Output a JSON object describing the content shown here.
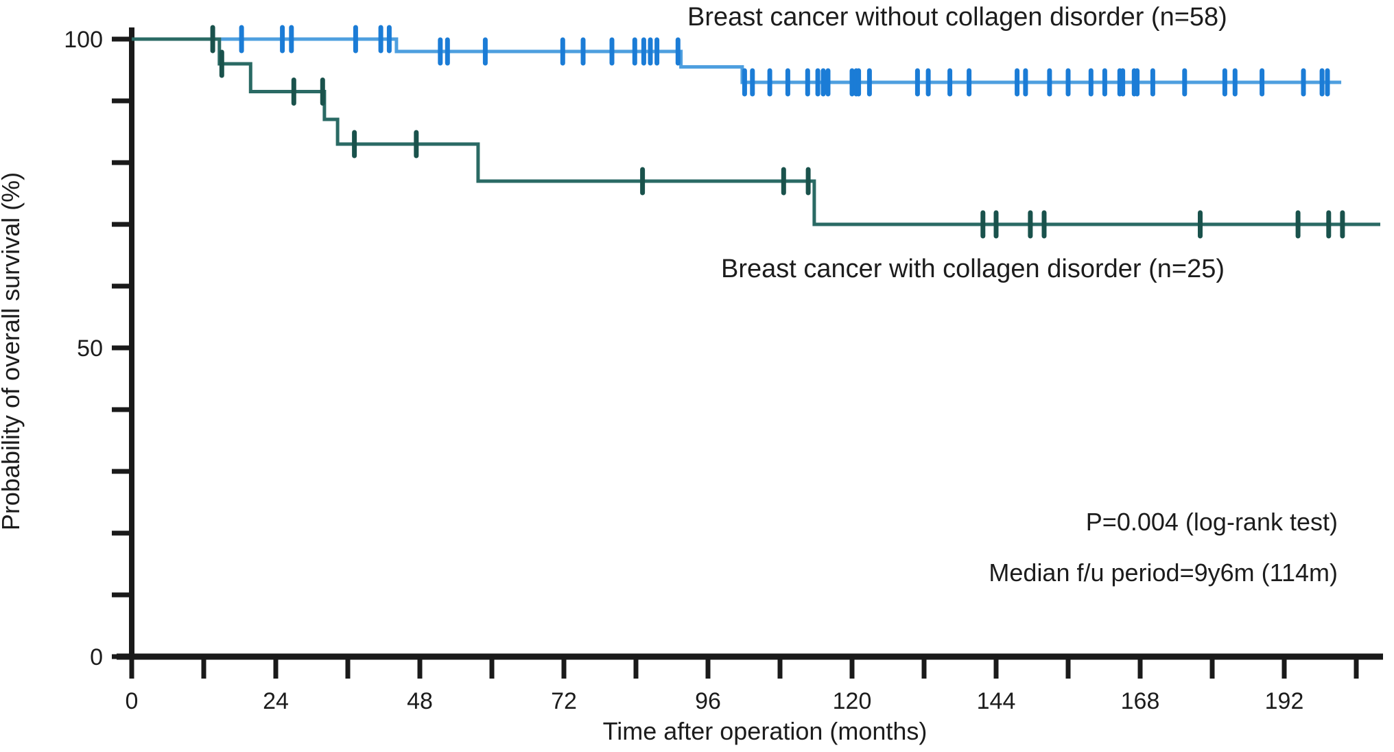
{
  "meta": {
    "background": "#ffffff",
    "axis_color": "#1a1a1a",
    "text_color": "#1c1c1c"
  },
  "chart_data": {
    "type": "line",
    "subtype": "kaplan-meier-step",
    "title": "",
    "xlabel": "Time after operation (months)",
    "ylabel": "Probability of overall survival (%)",
    "xlim": [
      0,
      208
    ],
    "ylim": [
      0,
      100
    ],
    "xticks_labeled": [
      0,
      24,
      48,
      72,
      96,
      120,
      144,
      168,
      192
    ],
    "xtick_minor_step": 12,
    "yticks_labeled": [
      100,
      50,
      0
    ],
    "ytick_minor_step": 10,
    "grid": false,
    "legend_position": "inline-labels",
    "annotations": [
      {
        "text": "P=0.004 (log-rank test)"
      },
      {
        "text": "Median f/u period=9y6m (114m)"
      }
    ],
    "series": [
      {
        "name": "Breast cancer without collagen disorder (n=58)",
        "n": 58,
        "color": "#4E9FDF",
        "censor_color": "#1B7CD6",
        "steps": [
          [
            0,
            100
          ],
          [
            44.1,
            100
          ],
          [
            44.1,
            98
          ],
          [
            91.5,
            98
          ],
          [
            91.5,
            95.5
          ],
          [
            101.7,
            95.5
          ],
          [
            101.7,
            93
          ],
          [
            201.5,
            93
          ]
        ],
        "censors": [
          [
            18.3,
            100
          ],
          [
            25.1,
            100
          ],
          [
            26.6,
            100
          ],
          [
            37.3,
            100
          ],
          [
            41.5,
            100
          ],
          [
            42.9,
            100
          ],
          [
            51.4,
            98
          ],
          [
            52.6,
            98
          ],
          [
            58.9,
            98
          ],
          [
            71.8,
            98
          ],
          [
            75.2,
            98
          ],
          [
            80,
            98
          ],
          [
            83.8,
            98
          ],
          [
            85.3,
            98
          ],
          [
            86.4,
            98
          ],
          [
            87.5,
            98
          ],
          [
            91,
            98
          ],
          [
            102.1,
            93
          ],
          [
            103.4,
            93
          ],
          [
            106.3,
            93
          ],
          [
            109.3,
            93
          ],
          [
            112.6,
            93
          ],
          [
            114.3,
            93
          ],
          [
            115.2,
            93
          ],
          [
            116,
            93
          ],
          [
            120,
            93
          ],
          [
            120.7,
            93
          ],
          [
            121.1,
            93
          ],
          [
            122.9,
            93
          ],
          [
            130.9,
            93
          ],
          [
            132.7,
            93
          ],
          [
            136.3,
            93
          ],
          [
            139.5,
            93
          ],
          [
            147.5,
            93
          ],
          [
            148.9,
            93
          ],
          [
            152.9,
            93
          ],
          [
            156,
            93
          ],
          [
            159.8,
            93
          ],
          [
            162.1,
            93
          ],
          [
            164.6,
            93
          ],
          [
            165.1,
            93
          ],
          [
            167,
            93
          ],
          [
            167.5,
            93
          ],
          [
            170.1,
            93
          ],
          [
            175.4,
            93
          ],
          [
            182.1,
            93
          ],
          [
            183.8,
            93
          ],
          [
            188.3,
            93
          ],
          [
            195.2,
            93
          ],
          [
            198.3,
            93
          ],
          [
            199.2,
            93
          ]
        ]
      },
      {
        "name": "Breast cancer with collagen disorder (n=25)",
        "n": 25,
        "color": "#2A6A64",
        "censor_color": "#1A524C",
        "steps": [
          [
            0,
            100
          ],
          [
            14.6,
            100
          ],
          [
            14.6,
            96
          ],
          [
            19.8,
            96
          ],
          [
            19.8,
            91.5
          ],
          [
            32.1,
            91.5
          ],
          [
            32.1,
            87
          ],
          [
            34.3,
            87
          ],
          [
            34.3,
            83
          ],
          [
            57.7,
            83
          ],
          [
            57.7,
            77
          ],
          [
            113.7,
            77
          ],
          [
            113.7,
            70
          ],
          [
            208,
            70
          ]
        ],
        "censors": [
          [
            13.5,
            100
          ],
          [
            15,
            96
          ],
          [
            27,
            91.5
          ],
          [
            31.8,
            91.5
          ],
          [
            37.1,
            83
          ],
          [
            47.4,
            83
          ],
          [
            85.1,
            77
          ],
          [
            108.6,
            77
          ],
          [
            112.7,
            77
          ],
          [
            141.8,
            70
          ],
          [
            144,
            70
          ],
          [
            149.7,
            70
          ],
          [
            152,
            70
          ],
          [
            178,
            70
          ],
          [
            194.3,
            70
          ],
          [
            199.4,
            70
          ],
          [
            201.7,
            70
          ]
        ]
      }
    ]
  }
}
